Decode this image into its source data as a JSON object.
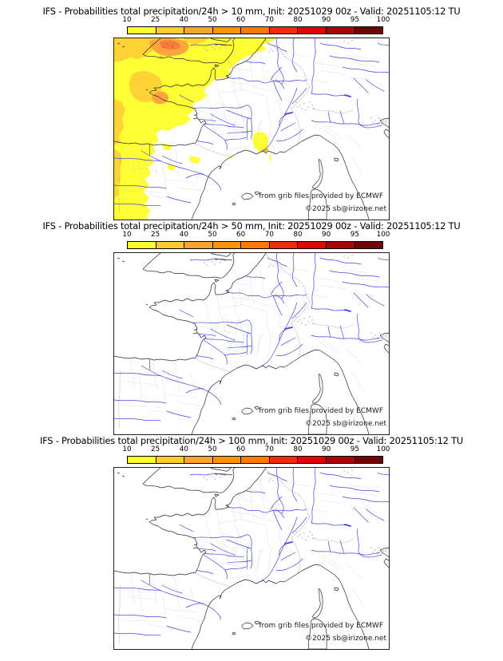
{
  "page": {
    "background": "#ffffff"
  },
  "colorbar": {
    "unit": "probability_percent",
    "ticks": [
      "10",
      "25",
      "40",
      "50",
      "60",
      "70",
      "80",
      "90",
      "95",
      "100"
    ],
    "segment_colors": [
      "#ffff2e",
      "#ffce2e",
      "#ffa52e",
      "#ff9405",
      "#ff7905",
      "#f02b05",
      "#e00505",
      "#a80505",
      "#700505"
    ]
  },
  "panels": [
    {
      "title": "IFS - Probabilities total precipitation/24h > 10 mm, Init: 20251029 00z - Valid: 20251105:12 TU",
      "threshold_mm": "10",
      "has_precip_overlay": true
    },
    {
      "title": "IFS - Probabilities total precipitation/24h > 50 mm, Init: 20251029 00z - Valid: 20251105:12 TU",
      "threshold_mm": "50",
      "has_precip_overlay": false
    },
    {
      "title": "IFS - Probabilities total precipitation/24h > 100 mm, Init: 20251029 00z - Valid: 20251105:12 TU",
      "threshold_mm": "100",
      "has_precip_overlay": false
    }
  ],
  "map": {
    "attribution_line1": "from grib files provided by ECMWF",
    "attribution_line2": "©2025 sb@irizone.net",
    "colors": {
      "coast": "#2b2b2b",
      "river": "#4646e0",
      "admin": "#b9b9b9",
      "border": "#9a9a9a",
      "urban": "#a0a0a0"
    },
    "overlay_colors": {
      "p10": "#ffff35",
      "p25": "#ffd235",
      "p40": "#ffa53c",
      "p50": "#f57d3c",
      "p60": "#e8512e"
    }
  }
}
